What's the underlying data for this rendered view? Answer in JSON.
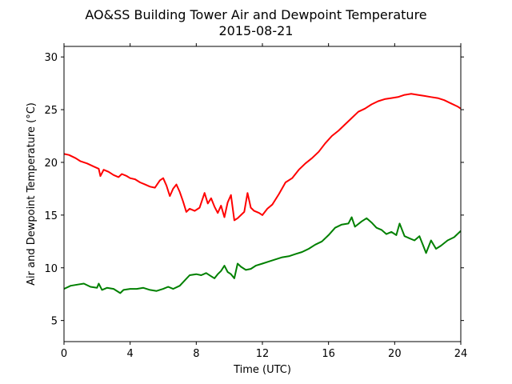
{
  "chart_data": {
    "type": "line",
    "title": "AO&SS Building Tower Air and Dewpoint Temperature",
    "subtitle": "2015-08-21",
    "xlabel": "Time (UTC)",
    "ylabel": "Air and Dewpoint Temperature (°C)",
    "xlim": [
      0,
      24
    ],
    "ylim": [
      3,
      31
    ],
    "xticks": [
      0,
      4,
      8,
      12,
      16,
      20,
      24
    ],
    "yticks": [
      5,
      10,
      15,
      20,
      25,
      30
    ],
    "grid": false,
    "series": [
      {
        "color": "#ff0000",
        "x": [
          0,
          0.3,
          0.7,
          1,
          1.4,
          1.8,
          2.1,
          2.2,
          2.4,
          2.7,
          3,
          3.3,
          3.5,
          3.8,
          4,
          4.3,
          4.6,
          4.9,
          5.2,
          5.5,
          5.8,
          6,
          6.2,
          6.4,
          6.6,
          6.8,
          7,
          7.2,
          7.4,
          7.6,
          7.9,
          8.2,
          8.5,
          8.7,
          8.9,
          9.1,
          9.3,
          9.5,
          9.7,
          9.9,
          10.1,
          10.3,
          10.5,
          10.7,
          10.9,
          11.1,
          11.3,
          11.5,
          11.8,
          12,
          12.3,
          12.6,
          13,
          13.4,
          13.8,
          14.2,
          14.6,
          15,
          15.4,
          15.8,
          16.2,
          16.6,
          17,
          17.4,
          17.8,
          18.2,
          18.6,
          19,
          19.4,
          19.8,
          20.2,
          20.6,
          21,
          21.4,
          21.8,
          22.2,
          22.6,
          23,
          23.4,
          23.8,
          24
        ],
        "values": [
          20.8,
          20.7,
          20.4,
          20.1,
          19.9,
          19.6,
          19.4,
          18.7,
          19.3,
          19.1,
          18.8,
          18.6,
          18.9,
          18.7,
          18.5,
          18.4,
          18.1,
          17.9,
          17.7,
          17.6,
          18.3,
          18.5,
          17.8,
          16.8,
          17.5,
          17.9,
          17.2,
          16.3,
          15.3,
          15.6,
          15.4,
          15.7,
          17.1,
          16.1,
          16.6,
          15.8,
          15.2,
          15.9,
          14.8,
          16.2,
          16.9,
          14.5,
          14.7,
          15.0,
          15.3,
          17.1,
          15.7,
          15.4,
          15.2,
          15.0,
          15.6,
          16.0,
          17.0,
          18.1,
          18.5,
          19.3,
          19.9,
          20.4,
          21.0,
          21.8,
          22.5,
          23.0,
          23.6,
          24.2,
          24.8,
          25.1,
          25.5,
          25.8,
          26.0,
          26.1,
          26.2,
          26.4,
          26.5,
          26.4,
          26.3,
          26.2,
          26.1,
          25.9,
          25.6,
          25.3,
          25.1
        ]
      },
      {
        "color": "#008000",
        "x": [
          0,
          0.4,
          0.8,
          1.2,
          1.6,
          2,
          2.1,
          2.3,
          2.6,
          3,
          3.4,
          3.6,
          4,
          4.4,
          4.8,
          5.2,
          5.6,
          6,
          6.3,
          6.6,
          7,
          7.3,
          7.6,
          8,
          8.3,
          8.6,
          8.9,
          9.1,
          9.3,
          9.5,
          9.7,
          9.9,
          10.1,
          10.3,
          10.5,
          10.7,
          11,
          11.3,
          11.6,
          12,
          12.4,
          12.8,
          13.2,
          13.6,
          14,
          14.4,
          14.8,
          15.2,
          15.6,
          16,
          16.4,
          16.8,
          17.2,
          17.4,
          17.6,
          18,
          18.3,
          18.6,
          18.9,
          19.2,
          19.5,
          19.8,
          20.1,
          20.3,
          20.6,
          20.9,
          21.2,
          21.5,
          21.7,
          21.9,
          22.2,
          22.5,
          22.8,
          23.2,
          23.6,
          24
        ],
        "values": [
          8.0,
          8.3,
          8.4,
          8.5,
          8.2,
          8.1,
          8.5,
          7.9,
          8.1,
          8.0,
          7.6,
          7.9,
          8.0,
          8.0,
          8.1,
          7.9,
          7.8,
          8.0,
          8.2,
          8.0,
          8.3,
          8.8,
          9.3,
          9.4,
          9.3,
          9.5,
          9.2,
          9.0,
          9.4,
          9.7,
          10.2,
          9.6,
          9.4,
          9.0,
          10.4,
          10.1,
          9.8,
          9.9,
          10.2,
          10.4,
          10.6,
          10.8,
          11.0,
          11.1,
          11.3,
          11.5,
          11.8,
          12.2,
          12.5,
          13.1,
          13.8,
          14.1,
          14.2,
          14.8,
          13.9,
          14.4,
          14.7,
          14.3,
          13.8,
          13.6,
          13.2,
          13.4,
          13.1,
          14.2,
          13.0,
          12.8,
          12.6,
          13.0,
          12.2,
          11.4,
          12.6,
          11.8,
          12.1,
          12.6,
          12.9,
          13.5
        ]
      }
    ]
  }
}
